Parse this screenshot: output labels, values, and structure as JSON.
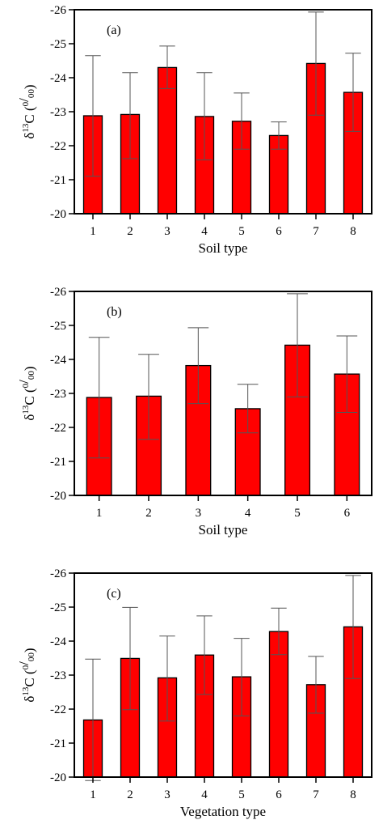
{
  "figure": {
    "ylabel_parts": {
      "delta": "δ",
      "mass": "13",
      "element": "C (",
      "numerator": "0",
      "denominator": "00",
      "close": ")"
    }
  },
  "chart_data": [
    {
      "type": "bar",
      "panel_label": "(a)",
      "title": "",
      "xlabel": "Soil type",
      "ylabel": "δ13C (0/00)",
      "categories": [
        "1",
        "2",
        "3",
        "4",
        "5",
        "6",
        "7",
        "8"
      ],
      "series": [
        {
          "values": [
            -22.88,
            -22.92,
            -24.3,
            -22.86,
            -22.72,
            -22.3,
            -24.42,
            -23.57
          ],
          "error_upper": [
            -24.65,
            -24.15,
            -24.93,
            -24.15,
            -23.55,
            -22.7,
            -25.93,
            -24.72
          ],
          "error_lower": [
            -21.1,
            -21.62,
            -23.68,
            -21.58,
            -21.9,
            -21.9,
            -22.9,
            -22.42
          ]
        }
      ],
      "yticks": [
        "-20",
        "-21",
        "-22",
        "-23",
        "-24",
        "-25",
        "-26"
      ],
      "ylim": [
        -20,
        -26
      ],
      "y_axis_inverted": true,
      "grid": false,
      "legend": "none",
      "bar_color": "#ff0000"
    },
    {
      "type": "bar",
      "panel_label": "(b)",
      "title": "",
      "xlabel": "Soil type",
      "ylabel": "δ13C (0/00)",
      "categories": [
        "1",
        "2",
        "3",
        "4",
        "5",
        "6"
      ],
      "series": [
        {
          "values": [
            -22.88,
            -22.92,
            -23.82,
            -22.55,
            -24.42,
            -23.57
          ],
          "error_upper": [
            -24.65,
            -24.15,
            -24.93,
            -23.27,
            -25.93,
            -24.69
          ],
          "error_lower": [
            -21.1,
            -21.65,
            -22.7,
            -21.84,
            -22.9,
            -22.44
          ]
        }
      ],
      "yticks": [
        "-20",
        "-21",
        "-22",
        "-23",
        "-24",
        "-25",
        "-26"
      ],
      "ylim": [
        -20,
        -26
      ],
      "y_axis_inverted": true,
      "grid": false,
      "legend": "none",
      "bar_color": "#ff0000"
    },
    {
      "type": "bar",
      "panel_label": "(c)",
      "title": "",
      "xlabel": "Vegetation type",
      "ylabel": "δ13C (0/00)",
      "categories": [
        "1",
        "2",
        "3",
        "4",
        "5",
        "6",
        "7",
        "8"
      ],
      "series": [
        {
          "values": [
            -21.68,
            -23.49,
            -22.92,
            -23.59,
            -22.95,
            -24.28,
            -22.72,
            -24.42
          ],
          "error_upper": [
            -23.47,
            -24.99,
            -24.15,
            -24.74,
            -24.08,
            -24.97,
            -23.55,
            -25.93
          ],
          "error_lower": [
            -19.9,
            -21.98,
            -21.65,
            -22.43,
            -21.8,
            -23.6,
            -21.88,
            -22.9
          ]
        }
      ],
      "yticks": [
        "-20",
        "-21",
        "-22",
        "-23",
        "-24",
        "-25",
        "-26"
      ],
      "ylim": [
        -20,
        -26
      ],
      "y_axis_inverted": true,
      "grid": false,
      "legend": "none",
      "bar_color": "#ff0000"
    }
  ]
}
